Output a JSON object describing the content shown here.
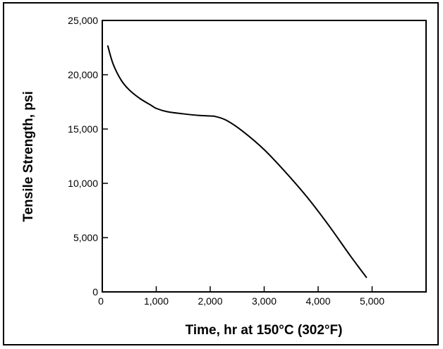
{
  "chart_data": {
    "type": "line",
    "title": "",
    "xlabel": "Time, hr at 150°C (302°F)",
    "ylabel": "Tensile Strength, psi",
    "xlim": [
      0,
      6000
    ],
    "ylim": [
      0,
      25000
    ],
    "x_ticks": [
      0,
      1000,
      2000,
      3000,
      4000,
      5000
    ],
    "x_tick_labels": [
      "0",
      "1,000",
      "2,000",
      "3,000",
      "4,000",
      "5,000"
    ],
    "y_ticks": [
      0,
      5000,
      10000,
      15000,
      20000,
      25000
    ],
    "y_tick_labels": [
      "0",
      "5,000",
      "10,000",
      "15,000",
      "20,000",
      "25,000"
    ],
    "grid": false,
    "series": [
      {
        "color": "#000000",
        "x": [
          100,
          200,
          350,
          500,
          700,
          900,
          1000,
          1200,
          1500,
          1800,
          2000,
          2100,
          2300,
          2600,
          3000,
          3400,
          3800,
          4200,
          4600,
          4900
        ],
        "y": [
          22700,
          21000,
          19500,
          18600,
          17800,
          17200,
          16900,
          16600,
          16400,
          16250,
          16200,
          16150,
          15800,
          14800,
          13100,
          11000,
          8700,
          6100,
          3300,
          1300
        ]
      }
    ]
  }
}
